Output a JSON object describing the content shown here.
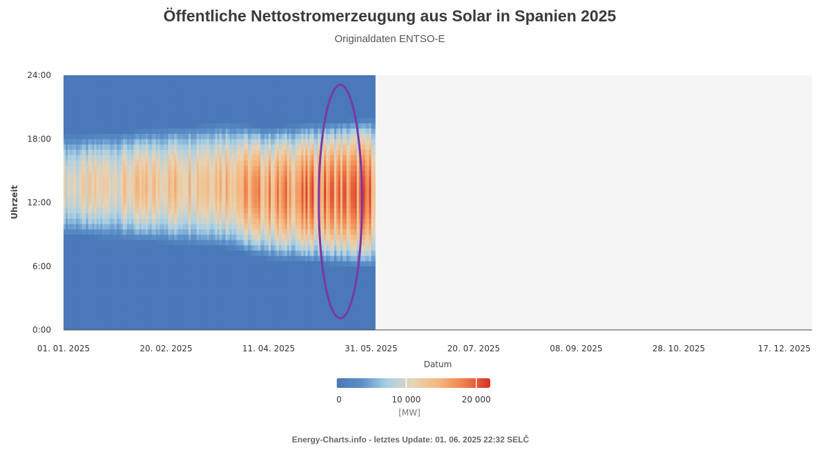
{
  "chart_data": {
    "type": "heatmap",
    "title": "Öffentliche Nettostromerzeugung aus Solar in Spanien 2025",
    "subtitle": "Originaldaten ENTSO-E",
    "xlabel": "Datum",
    "ylabel": "Uhrzeit",
    "x_ticks": [
      "01. 01. 2025",
      "20. 02. 2025",
      "11. 04. 2025",
      "31. 05. 2025",
      "20. 07. 2025",
      "08. 09. 2025",
      "28. 10. 2025",
      "17. 12. 2025"
    ],
    "y_ticks": [
      "0:00",
      "6:00",
      "12:00",
      "18:00",
      "24:00"
    ],
    "x_range_days": [
      0,
      365
    ],
    "y_range_hours": [
      0,
      24
    ],
    "data_last_day": 152,
    "colorscale": {
      "min": 0,
      "max": 22000,
      "ticks": [
        "0",
        "10 000",
        "20 000"
      ],
      "tick_values": [
        0,
        10000,
        20000
      ],
      "unit": "[MW]",
      "colors": [
        "#4a78b8",
        "#5b8fc8",
        "#a9d1e6",
        "#e9d3b4",
        "#f5b77d",
        "#ef7f4a",
        "#d73027"
      ]
    },
    "annotation": {
      "type": "ellipse",
      "center_day": 135,
      "center_hour": 12.1,
      "rx_days": 10.5,
      "ry_hours": 11
    },
    "footer": "Energy-Charts.info - letztes Update: 01. 06. 2025 22:32 SELČ",
    "grid": false,
    "legend_placement": "bottom"
  }
}
